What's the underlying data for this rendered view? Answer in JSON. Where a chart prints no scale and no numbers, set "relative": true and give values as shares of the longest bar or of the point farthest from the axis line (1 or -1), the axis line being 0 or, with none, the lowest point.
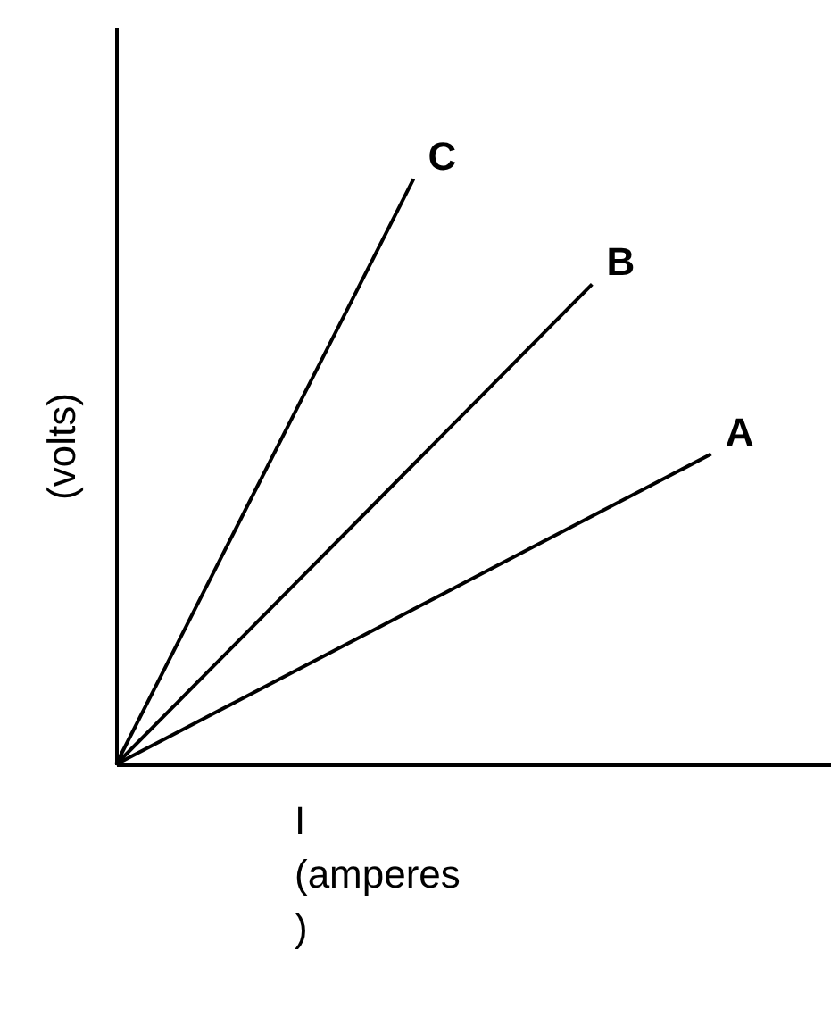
{
  "chart_data": {
    "type": "line",
    "relative": true,
    "xlabel": "I (amperes )",
    "ylabel": "(volts)",
    "grid": false,
    "marker": "none",
    "line_style": "solid",
    "categories": [
      null,
      null,
      null,
      null,
      null,
      null,
      null,
      null,
      null,
      null,
      null,
      null,
      null
    ],
    "series": [
      {
        "name": "A",
        "color": "#000000",
        "values": [
          0,
          0.053,
          0.106,
          0.159,
          0.212,
          0.265,
          0.318,
          0.371,
          0.424,
          0.477,
          0.53,
          null,
          null
        ]
      },
      {
        "name": "B",
        "color": "#000000",
        "values": [
          0,
          0.1025,
          0.205,
          0.3075,
          0.41,
          0.5125,
          0.615,
          0.7175,
          0.82,
          null,
          null,
          null,
          null
        ]
      },
      {
        "name": "C",
        "color": "#000000",
        "values": [
          0,
          0.2,
          0.4,
          0.6,
          0.8,
          1,
          null,
          null,
          null,
          null,
          null,
          null,
          null
        ]
      }
    ]
  }
}
